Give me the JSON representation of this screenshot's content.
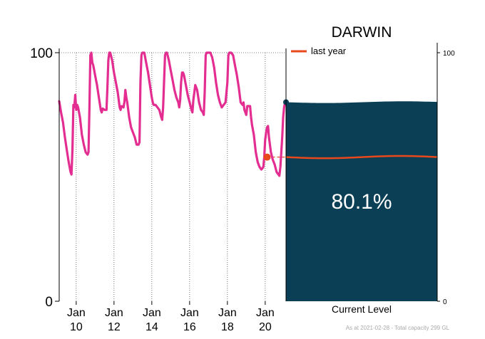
{
  "chart_data": {
    "type": "line",
    "title": "DARWIN",
    "left_axis": {
      "ylim": [
        0,
        100
      ],
      "ticks": [
        "0",
        "100"
      ]
    },
    "right_axis": {
      "ylim": [
        0,
        100
      ],
      "ticks": [
        "0",
        "100"
      ]
    },
    "x_ticks": [
      {
        "day": 10,
        "line1": "Jan",
        "line2": "10"
      },
      {
        "day": 12,
        "line1": "Jan",
        "line2": "12"
      },
      {
        "day": 14,
        "line1": "Jan",
        "line2": "14"
      },
      {
        "day": 16,
        "line1": "Jan",
        "line2": "16"
      },
      {
        "day": 18,
        "line1": "Jan",
        "line2": "18"
      },
      {
        "day": 20,
        "line1": "Jan",
        "line2": "20"
      }
    ],
    "xlim": [
      9.1,
      21.1
    ],
    "series": [
      {
        "values": [
          [
            9.1,
            80.5
          ],
          [
            9.2,
            76
          ],
          [
            9.3,
            72
          ],
          [
            9.4,
            66
          ],
          [
            9.5,
            61
          ],
          [
            9.6,
            56
          ],
          [
            9.7,
            52
          ],
          [
            9.75,
            51
          ],
          [
            9.8,
            61
          ],
          [
            9.85,
            79
          ],
          [
            9.9,
            78
          ],
          [
            9.95,
            83
          ],
          [
            10.0,
            77
          ],
          [
            10.05,
            79
          ],
          [
            10.1,
            78
          ],
          [
            10.2,
            74
          ],
          [
            10.3,
            67
          ],
          [
            10.4,
            63
          ],
          [
            10.5,
            60
          ],
          [
            10.6,
            59
          ],
          [
            10.65,
            60
          ],
          [
            10.7,
            78
          ],
          [
            10.75,
            99
          ],
          [
            10.8,
            100
          ],
          [
            10.85,
            96
          ],
          [
            10.9,
            95
          ],
          [
            11.0,
            91
          ],
          [
            11.1,
            87
          ],
          [
            11.2,
            82
          ],
          [
            11.3,
            77
          ],
          [
            11.35,
            76
          ],
          [
            11.4,
            77.5
          ],
          [
            11.5,
            77
          ],
          [
            11.6,
            77
          ],
          [
            11.65,
            86
          ],
          [
            11.7,
            97
          ],
          [
            11.75,
            100
          ],
          [
            11.8,
            100
          ],
          [
            11.9,
            97
          ],
          [
            12.0,
            92
          ],
          [
            12.1,
            88
          ],
          [
            12.2,
            84
          ],
          [
            12.3,
            78
          ],
          [
            12.35,
            77
          ],
          [
            12.4,
            78.5
          ],
          [
            12.5,
            78
          ],
          [
            12.55,
            80
          ],
          [
            12.6,
            85
          ],
          [
            12.65,
            82
          ],
          [
            12.7,
            80
          ],
          [
            12.8,
            74
          ],
          [
            12.9,
            70
          ],
          [
            13.0,
            68
          ],
          [
            13.1,
            66
          ],
          [
            13.2,
            63
          ],
          [
            13.3,
            63
          ],
          [
            13.35,
            64
          ],
          [
            13.4,
            88
          ],
          [
            13.45,
            99
          ],
          [
            13.5,
            100
          ],
          [
            13.6,
            100
          ],
          [
            13.7,
            96
          ],
          [
            13.8,
            92
          ],
          [
            13.9,
            87
          ],
          [
            14.0,
            82
          ],
          [
            14.05,
            80
          ],
          [
            14.1,
            79
          ],
          [
            14.2,
            79
          ],
          [
            14.3,
            78
          ],
          [
            14.4,
            77
          ],
          [
            14.5,
            74
          ],
          [
            14.55,
            73
          ],
          [
            14.6,
            78
          ],
          [
            14.7,
            99
          ],
          [
            14.75,
            100
          ],
          [
            14.8,
            100
          ],
          [
            14.9,
            97
          ],
          [
            15.0,
            93
          ],
          [
            15.1,
            89
          ],
          [
            15.2,
            85
          ],
          [
            15.3,
            82
          ],
          [
            15.4,
            80
          ],
          [
            15.45,
            78
          ],
          [
            15.5,
            81
          ],
          [
            15.55,
            88
          ],
          [
            15.6,
            92
          ],
          [
            15.65,
            92
          ],
          [
            15.7,
            91
          ],
          [
            15.8,
            87
          ],
          [
            15.9,
            83
          ],
          [
            16.0,
            80
          ],
          [
            16.1,
            77
          ],
          [
            16.15,
            76
          ],
          [
            16.2,
            81
          ],
          [
            16.3,
            87
          ],
          [
            16.35,
            86
          ],
          [
            16.4,
            85
          ],
          [
            16.5,
            80
          ],
          [
            16.6,
            77
          ],
          [
            16.7,
            76
          ],
          [
            16.75,
            75
          ],
          [
            16.8,
            84
          ],
          [
            16.85,
            99
          ],
          [
            16.9,
            100
          ],
          [
            17.0,
            100
          ],
          [
            17.1,
            100
          ],
          [
            17.2,
            98
          ],
          [
            17.3,
            94
          ],
          [
            17.4,
            88
          ],
          [
            17.5,
            83
          ],
          [
            17.6,
            80
          ],
          [
            17.7,
            78
          ],
          [
            17.8,
            79
          ],
          [
            17.9,
            80
          ],
          [
            18.0,
            88
          ],
          [
            18.05,
            99
          ],
          [
            18.1,
            100
          ],
          [
            18.2,
            100
          ],
          [
            18.3,
            99
          ],
          [
            18.4,
            95
          ],
          [
            18.5,
            91
          ],
          [
            18.6,
            86
          ],
          [
            18.7,
            80
          ],
          [
            18.8,
            79
          ],
          [
            18.85,
            80
          ],
          [
            18.9,
            77
          ],
          [
            19.0,
            75
          ],
          [
            19.05,
            78.5
          ],
          [
            19.1,
            78.5
          ],
          [
            19.2,
            78.5
          ],
          [
            19.25,
            74
          ],
          [
            19.3,
            71
          ],
          [
            19.4,
            67
          ],
          [
            19.5,
            60
          ],
          [
            19.6,
            56
          ],
          [
            19.7,
            54
          ],
          [
            19.8,
            53
          ],
          [
            19.9,
            54
          ],
          [
            19.95,
            58
          ],
          [
            20.0,
            65
          ],
          [
            20.05,
            68
          ],
          [
            20.1,
            70
          ],
          [
            20.15,
            70.5
          ],
          [
            20.2,
            66
          ],
          [
            20.3,
            60
          ],
          [
            20.4,
            57
          ],
          [
            20.5,
            55
          ],
          [
            20.6,
            52
          ],
          [
            20.7,
            51
          ],
          [
            20.75,
            50.5
          ],
          [
            20.8,
            54
          ],
          [
            20.85,
            60
          ],
          [
            20.9,
            66
          ],
          [
            20.95,
            74
          ],
          [
            21.0,
            78
          ],
          [
            21.05,
            80.1
          ],
          [
            21.1,
            80.1
          ]
        ]
      }
    ],
    "last_year_marker": {
      "x": 20.1,
      "y": 58
    },
    "current_level": {
      "label": "Current Level",
      "value": 80.1,
      "text": "80.1%",
      "last_year_value": 58
    },
    "legend": {
      "entries": [
        "last year"
      ],
      "position": "top-left of panel"
    },
    "grid": true
  },
  "footer": "As at 2021-02-28 - Total capacity 299 GL",
  "colors": {
    "series": "#e32d91",
    "fill": "#0a3f56",
    "last_year": "#e8481c",
    "axis": "#000000",
    "grid": "#555555",
    "footer": "#aaaaaa"
  }
}
